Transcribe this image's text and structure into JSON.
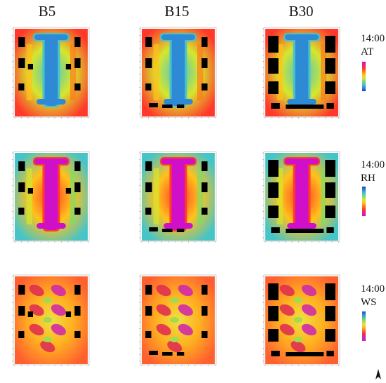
{
  "columns": [
    "B5",
    "B15",
    "B30"
  ],
  "rows": [
    {
      "time": "14:00",
      "variable": "AT",
      "palette": "at"
    },
    {
      "time": "14:00",
      "variable": "RH",
      "palette": "rh"
    },
    {
      "time": "14:00",
      "variable": "WS",
      "palette": "ws"
    }
  ],
  "colors": {
    "at": [
      "#1d3fbf",
      "#2f8ad6",
      "#46c4c8",
      "#7fdc6a",
      "#d6e62e",
      "#ffc21a",
      "#ff7a1a",
      "#ff3a2a",
      "#e8208e",
      "#d010c8"
    ],
    "rh": [
      "#d010c8",
      "#e8208e",
      "#ff3a2a",
      "#ff7a1a",
      "#ffc21a",
      "#d6e62e",
      "#7fdc6a",
      "#46c4c8",
      "#2f8ad6",
      "#1d3fbf"
    ],
    "ws": [
      "#c020d0",
      "#d02aa8",
      "#e03050",
      "#ff6030",
      "#ffb020",
      "#f0e040",
      "#a0dc50",
      "#50c8a0",
      "#3090d0",
      "#2050b8"
    ],
    "building": "#000000"
  },
  "icons": {
    "north_arrow": "north-arrow-icon"
  }
}
